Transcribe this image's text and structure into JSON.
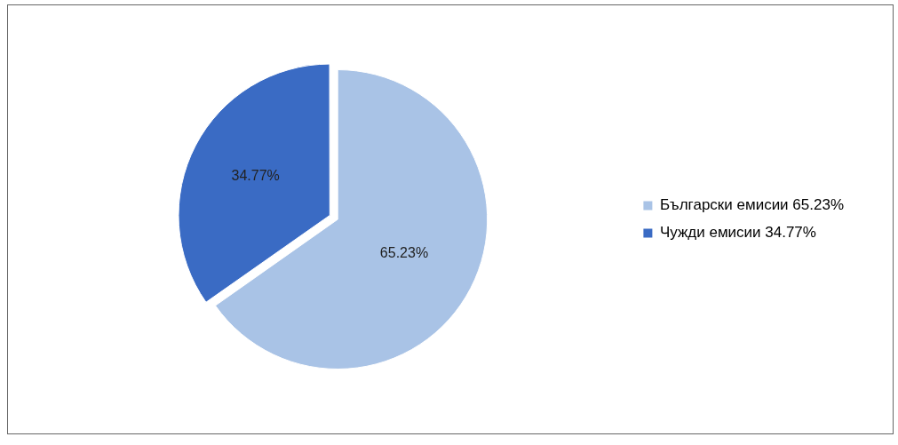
{
  "chart_data": {
    "type": "pie",
    "categories": [
      "Български емисии",
      "Чужди емисии"
    ],
    "values": [
      65.23,
      34.77
    ],
    "colors": [
      "#a9c3e6",
      "#3a6bc4"
    ],
    "value_labels": [
      "65.23%",
      "34.77%"
    ],
    "legend": "right"
  }
}
